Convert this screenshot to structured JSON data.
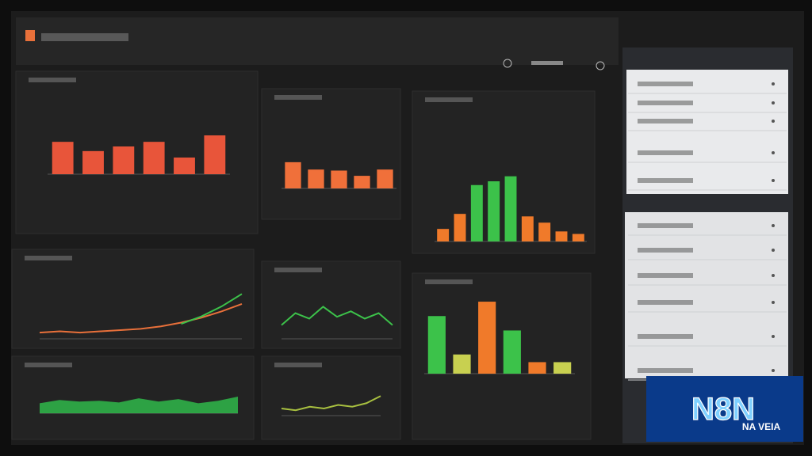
{
  "chart_data": [
    {
      "type": "bar",
      "ylim": [
        0,
        60
      ],
      "values": [
        35,
        25,
        30,
        35,
        18,
        42
      ],
      "color": "#e8553a"
    },
    {
      "type": "bar",
      "ylim": [
        0,
        40
      ],
      "values": [
        25,
        18,
        17,
        12,
        18
      ],
      "color": "#f0703a"
    },
    {
      "type": "bar",
      "ylim": [
        0,
        60
      ],
      "values": [
        10,
        22,
        45,
        48,
        52,
        20,
        15,
        8,
        6
      ],
      "colors": [
        "#f07a2a",
        "#f07a2a",
        "#3cc24a",
        "#3cc24a",
        "#3cc24a",
        "#f07a2a",
        "#f07a2a",
        "#f07a2a",
        "#f07a2a"
      ]
    },
    {
      "type": "line",
      "ylim": [
        0,
        40
      ],
      "series": [
        {
          "color": "#e8703a",
          "values": [
            5,
            6,
            5,
            6,
            7,
            8,
            10,
            13,
            17,
            22,
            28
          ]
        },
        {
          "color": "#3cc24a",
          "values": [
            null,
            null,
            null,
            null,
            null,
            null,
            null,
            12,
            18,
            26,
            36
          ]
        }
      ]
    },
    {
      "type": "area",
      "ylim": [
        0,
        40
      ],
      "series": [
        {
          "color": "#2fb84a",
          "values": [
            12,
            16,
            14,
            15,
            13,
            18,
            14,
            17,
            12,
            15,
            20
          ]
        }
      ]
    },
    {
      "type": "line",
      "ylim": [
        0,
        50
      ],
      "series": [
        {
          "color": "#3cc24a",
          "values": [
            15,
            28,
            22,
            35,
            24,
            30,
            22,
            28,
            15
          ]
        }
      ]
    },
    {
      "type": "line",
      "ylim": [
        0,
        40
      ],
      "series": [
        {
          "color": "#a8c040",
          "values": [
            8,
            6,
            10,
            8,
            12,
            10,
            14,
            22
          ]
        }
      ]
    },
    {
      "type": "bar",
      "ylim": [
        0,
        80
      ],
      "values": [
        60,
        20,
        75,
        45,
        12,
        12
      ],
      "colors": [
        "#3cc24a",
        "#c8d050",
        "#f07a2a",
        "#3cc24a",
        "#f07a2a",
        "#c8d050"
      ]
    }
  ],
  "logo": {
    "text": "N8N",
    "subtext": "NA VEIA"
  }
}
